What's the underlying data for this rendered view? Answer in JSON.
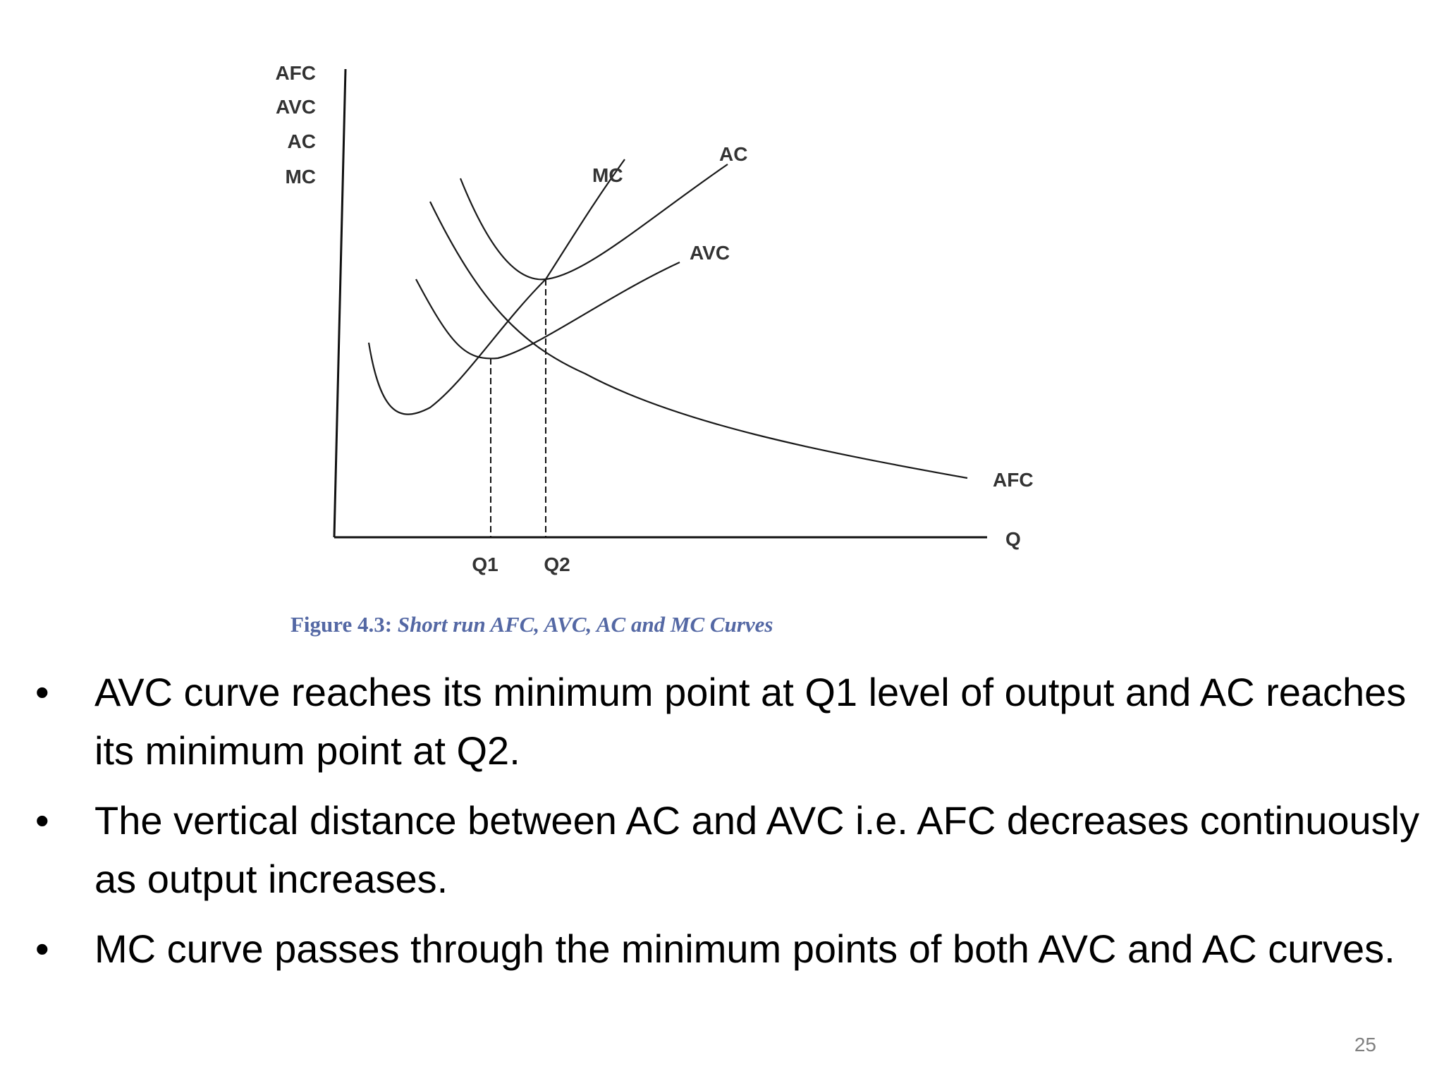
{
  "diagram": {
    "y_axis_labels": [
      "AFC",
      "AVC",
      "AC",
      "MC"
    ],
    "x_axis_label": "Q",
    "x_ticks": [
      "Q1",
      "Q2"
    ],
    "curve_labels": {
      "mc": "MC",
      "ac": "AC",
      "avc": "AVC",
      "afc": "AFC"
    }
  },
  "caption": {
    "prefix": "Figure 4.3:",
    "body": "Short run AFC, AVC, AC and MC Curves"
  },
  "bullets": [
    "AVC curve reaches its minimum point at Q1 level of output and AC reaches its minimum point at Q2.",
    "The vertical distance between AC and AVC i.e. AFC decreases continuously as output increases.",
    "MC curve passes through the minimum points of both AVC and AC curves."
  ],
  "bullet_symbol": "•",
  "page_number": "25"
}
